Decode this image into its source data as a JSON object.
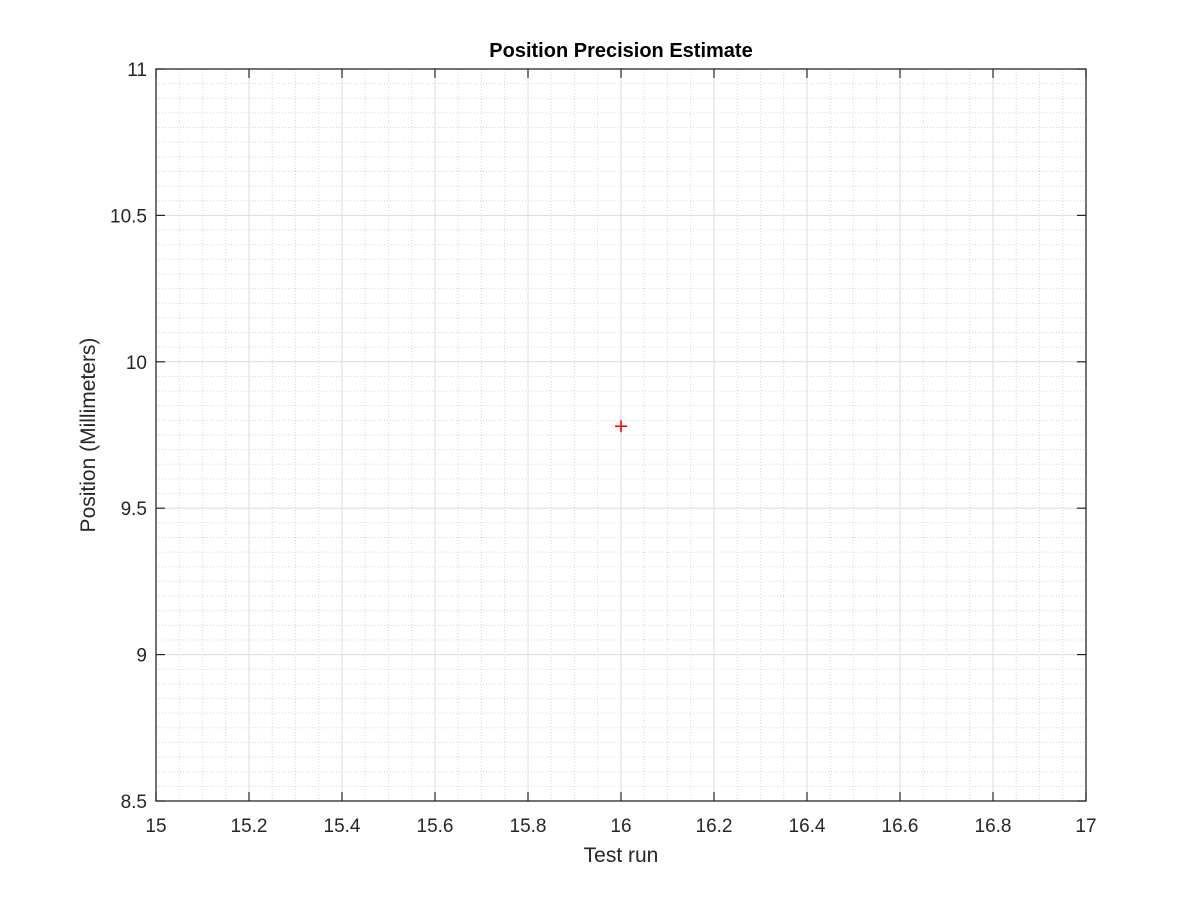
{
  "chart_data": {
    "type": "scatter",
    "title": "Position Precision Estimate",
    "xlabel": "Test run",
    "ylabel": "Position (Millimeters)",
    "xlim": [
      15,
      17
    ],
    "ylim": [
      8.5,
      11
    ],
    "x_ticks": [
      15,
      15.2,
      15.4,
      15.6,
      15.8,
      16,
      16.2,
      16.4,
      16.6,
      16.8,
      17
    ],
    "y_ticks": [
      8.5,
      9,
      9.5,
      10,
      10.5,
      11
    ],
    "grid": true,
    "minor_grid": true,
    "box": true,
    "series": [
      {
        "marker": "+",
        "color": "#ff0000",
        "points": [
          {
            "x": 16,
            "y": 9.78
          }
        ]
      }
    ]
  }
}
